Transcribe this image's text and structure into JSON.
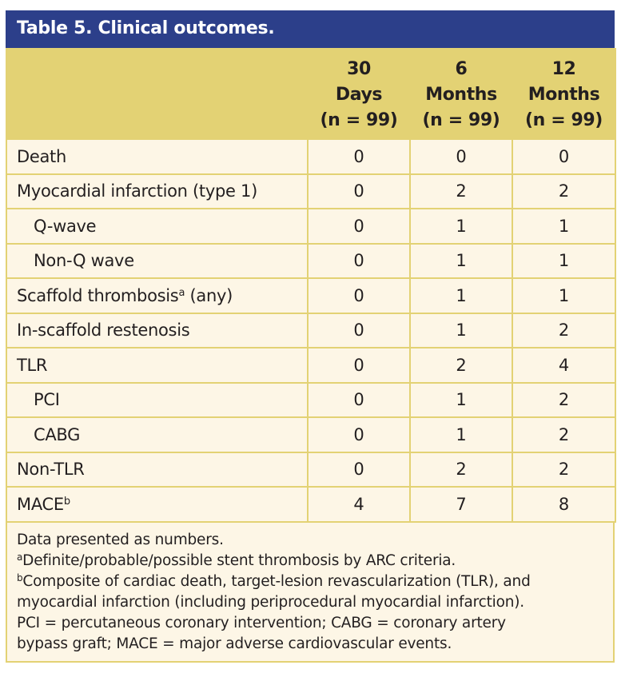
{
  "table": {
    "title": "Table 5. Clinical outcomes.",
    "columns": [
      {
        "line1": "",
        "line2": "",
        "line3": ""
      },
      {
        "line1": "30",
        "line2": "Days",
        "line3": "(n = 99)"
      },
      {
        "line1": "6",
        "line2": "Months",
        "line3": "(n = 99)"
      },
      {
        "line1": "12",
        "line2": "Months",
        "line3": "(n = 99)"
      }
    ],
    "rows": [
      {
        "label": "Death",
        "sup": "",
        "suffix": "",
        "indent": false,
        "values": [
          "0",
          "0",
          "0"
        ]
      },
      {
        "label": "Myocardial infarction (type 1)",
        "sup": "",
        "suffix": "",
        "indent": false,
        "values": [
          "0",
          "2",
          "2"
        ]
      },
      {
        "label": "Q-wave",
        "sup": "",
        "suffix": "",
        "indent": true,
        "values": [
          "0",
          "1",
          "1"
        ]
      },
      {
        "label": "Non-Q wave",
        "sup": "",
        "suffix": "",
        "indent": true,
        "values": [
          "0",
          "1",
          "1"
        ]
      },
      {
        "label": "Scaffold thrombosis",
        "sup": "a",
        "suffix": " (any)",
        "indent": false,
        "values": [
          "0",
          "1",
          "1"
        ]
      },
      {
        "label": "In-scaffold restenosis",
        "sup": "",
        "suffix": "",
        "indent": false,
        "values": [
          "0",
          "1",
          "2"
        ]
      },
      {
        "label": "TLR",
        "sup": "",
        "suffix": "",
        "indent": false,
        "values": [
          "0",
          "2",
          "4"
        ]
      },
      {
        "label": "PCI",
        "sup": "",
        "suffix": "",
        "indent": true,
        "values": [
          "0",
          "1",
          "2"
        ]
      },
      {
        "label": "CABG",
        "sup": "",
        "suffix": "",
        "indent": true,
        "values": [
          "0",
          "1",
          "2"
        ]
      },
      {
        "label": "Non-TLR",
        "sup": "",
        "suffix": "",
        "indent": false,
        "values": [
          "0",
          "2",
          "2"
        ]
      },
      {
        "label": "MACE",
        "sup": "b",
        "suffix": "",
        "indent": false,
        "values": [
          "4",
          "7",
          "8"
        ]
      }
    ]
  },
  "notes": {
    "line1": "Data presented as numbers.",
    "a_mark": "a",
    "a_text": "Definite/probable/possible stent thrombosis by ARC criteria.",
    "b_mark": "b",
    "b_text": "Composite of cardiac death, target-lesion revascularization (TLR), and",
    "line4": "myocardial infarction (including periprocedural myocardial infarction).",
    "line5": "PCI = percutaneous coronary intervention; CABG = coronary artery",
    "line6": "bypass graft; MACE = major adverse cardiovascular events."
  },
  "colors": {
    "title_bg": "#2c3f8a",
    "header_bg": "#e3d274",
    "cell_bg": "#fdf6e6",
    "border": "#e3d274",
    "text": "#231f20"
  }
}
